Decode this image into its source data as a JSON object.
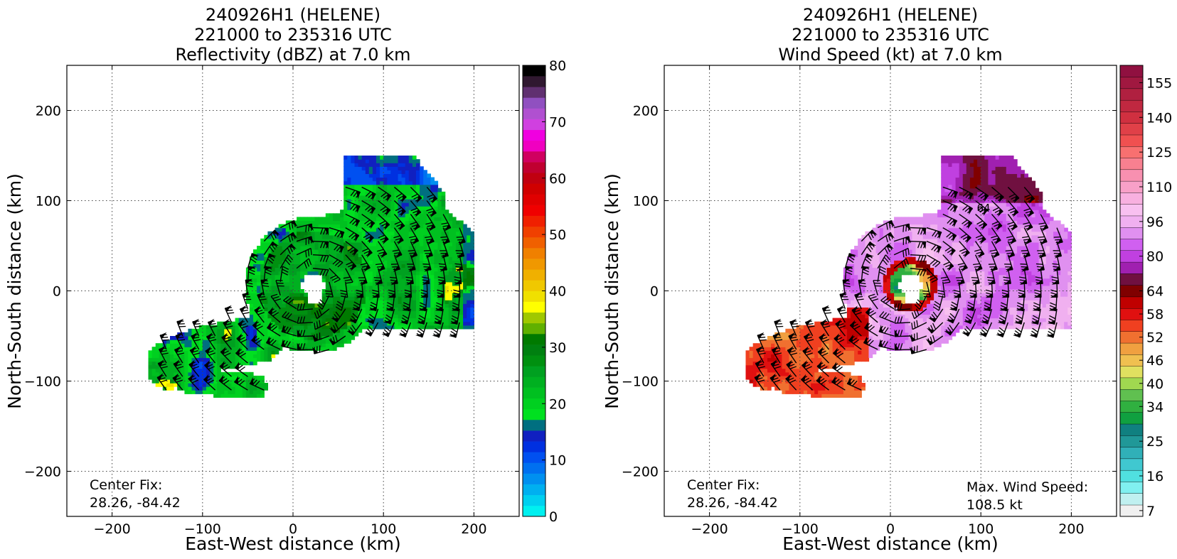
{
  "chart_data": [
    {
      "type": "heatmap",
      "title_lines": [
        "240926H1 (HELENE)",
        "221000 to 235316 UTC",
        "Reflectivity (dBZ) at 7.0 km"
      ],
      "xlabel": "East-West distance (km)",
      "ylabel": "North-South distance (km)",
      "xlim": [
        -250,
        250
      ],
      "ylim": [
        -250,
        250
      ],
      "xticks": [
        -200,
        -100,
        0,
        100,
        200
      ],
      "yticks": [
        -200,
        -100,
        0,
        100,
        200
      ],
      "xtick_labels": [
        "−200",
        "−100",
        "0",
        "100",
        "200"
      ],
      "ytick_labels": [
        "−200",
        "−100",
        "0",
        "100",
        "200"
      ],
      "grid": true,
      "center_fix_label": "Center Fix:",
      "center_fix_value": "28.26, -84.42",
      "colorbar": {
        "min": 0,
        "max": 80,
        "tick_values": [
          0,
          10,
          20,
          30,
          40,
          50,
          60,
          70,
          80
        ],
        "tick_labels": [
          "0",
          "10",
          "20",
          "30",
          "40",
          "50",
          "60",
          "70",
          "80"
        ],
        "colors": [
          "#00f0f0",
          "#00d0f0",
          "#00b0f0",
          "#0090f0",
          "#0070f0",
          "#0050f0",
          "#0030e0",
          "#1020c0",
          "#006f80",
          "#00e020",
          "#00d020",
          "#00c020",
          "#00b020",
          "#00a020",
          "#009010",
          "#008010",
          "#007a00",
          "#60b000",
          "#a0c800",
          "#ffff00",
          "#f0e000",
          "#f0c800",
          "#f0b000",
          "#f09800",
          "#f08000",
          "#f06000",
          "#f04000",
          "#f02000",
          "#f00000",
          "#e00000",
          "#d00000",
          "#c00010",
          "#c00030",
          "#d00060",
          "#f000c0",
          "#f000e0",
          "#d040e0",
          "#b050d0",
          "#9050c0",
          "#603070",
          "#301830",
          "#000000"
        ]
      },
      "vortex": {
        "center_x": 20,
        "center_y": 5,
        "eye_radius": 18
      }
    },
    {
      "type": "heatmap",
      "title_lines": [
        "240926H1 (HELENE)",
        "221000 to 235316 UTC",
        "Wind Speed (kt) at 7.0 km"
      ],
      "xlabel": "East-West distance (km)",
      "ylabel": "North-South distance (km)",
      "xlim": [
        -250,
        250
      ],
      "ylim": [
        -250,
        250
      ],
      "xticks": [
        -200,
        -100,
        0,
        100,
        200
      ],
      "yticks": [
        -200,
        -100,
        0,
        100,
        200
      ],
      "xtick_labels": [
        "−200",
        "−100",
        "0",
        "100",
        "200"
      ],
      "ytick_labels": [
        "−200",
        "−100",
        "0",
        "100",
        "200"
      ],
      "grid": true,
      "center_fix_label": "Center Fix:",
      "center_fix_value": "28.26, -84.42",
      "max_wind_label": "Max. Wind Speed:",
      "max_wind_value": "108.5 kt",
      "contour_label": "64",
      "colorbar": {
        "tick_labels": [
          "7",
          "16",
          "25",
          "34",
          "40",
          "46",
          "52",
          "58",
          "64",
          "80",
          "96",
          "110",
          "125",
          "140",
          "155"
        ],
        "tick_indices": [
          0,
          3,
          6,
          9,
          11,
          13,
          15,
          17,
          19,
          22,
          25,
          28,
          31,
          34,
          37
        ],
        "colors": [
          "#f0f0f0",
          "#c0f0f0",
          "#80f0f0",
          "#50e0e0",
          "#40c8d0",
          "#30b0b8",
          "#209898",
          "#108080",
          "#10a040",
          "#30b040",
          "#60c050",
          "#a0d850",
          "#e0e060",
          "#f0c050",
          "#f0a040",
          "#f07030",
          "#f04020",
          "#e01010",
          "#c00000",
          "#800000",
          "#701040",
          "#a020b0",
          "#c040e0",
          "#d060f0",
          "#e090f0",
          "#f0b0f0",
          "#f8c0f0",
          "#f8b0e0",
          "#f8a0c8",
          "#f890b0",
          "#f88090",
          "#f87070",
          "#f05050",
          "#e04048",
          "#d03040",
          "#c02840",
          "#b02040",
          "#a01840",
          "#901040"
        ]
      },
      "vortex": {
        "center_x": 20,
        "center_y": 5,
        "eye_radius": 18
      }
    }
  ]
}
